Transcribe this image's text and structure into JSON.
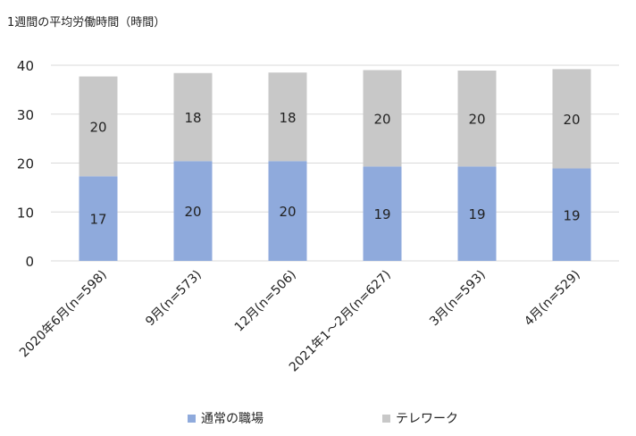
{
  "title": "1週間の平均労働時間（時間）",
  "colors": {
    "office": "#8faadc",
    "telework": "#c8c8c8",
    "grid": "#d9d9d9"
  },
  "chart_data": {
    "type": "bar",
    "stacked": true,
    "title": "1週間の平均労働時間（時間）",
    "xlabel": "",
    "ylabel": "",
    "ylim": [
      0,
      40
    ],
    "yticks": [
      0,
      10,
      20,
      30,
      40
    ],
    "categories": [
      "2020年6月(n=598)",
      "9月(n=573)",
      "12月(n=506)",
      "2021年1～2月(n=627)",
      "3月(n=593)",
      "4月(n=529)"
    ],
    "series": [
      {
        "name": "通常の職場",
        "values": [
          17,
          20,
          20,
          19,
          19,
          19
        ],
        "plot_values": [
          17.3,
          20.4,
          20.4,
          19.3,
          19.3,
          18.9
        ],
        "color": "#8faadc"
      },
      {
        "name": "テレワーク",
        "values": [
          20,
          18,
          18,
          20,
          20,
          20
        ],
        "plot_values": [
          20.4,
          18.0,
          18.1,
          19.7,
          19.6,
          20.3
        ],
        "color": "#c8c8c8"
      }
    ],
    "grid": true,
    "legend": "bottom"
  }
}
